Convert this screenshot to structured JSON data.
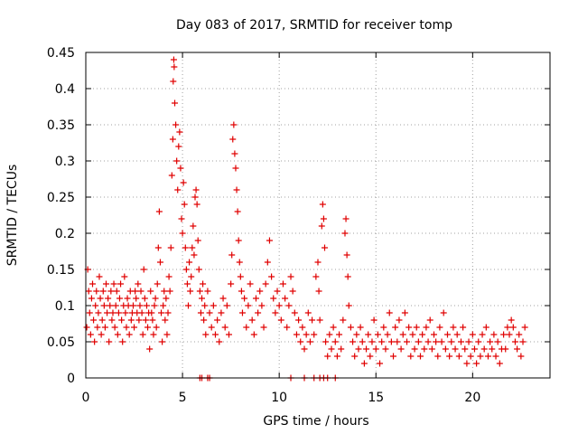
{
  "chart_data": {
    "type": "scatter",
    "title": "Day 083 of 2017, SRMTID for receiver tomp",
    "xlabel": "GPS time / hours",
    "ylabel": "SRMTID / TECUs",
    "xlim": [
      0,
      24
    ],
    "ylim": [
      0,
      0.45
    ],
    "grid": true,
    "marker": "+",
    "x_ticks": [
      0,
      5,
      10,
      15,
      20
    ],
    "x_tick_labels": [
      "0",
      "5",
      "10",
      "15",
      "20"
    ],
    "y_ticks": [
      0,
      0.05,
      0.1,
      0.15,
      0.2,
      0.25,
      0.3,
      0.35,
      0.4,
      0.45
    ],
    "y_tick_labels": [
      "0",
      "0.05",
      "0.1",
      "0.15",
      "0.2",
      "0.25",
      "0.3",
      "0.35",
      "0.4",
      "0.45"
    ],
    "series": [
      {
        "name": "SRMTID",
        "color": "#e00000",
        "points": [
          [
            0.05,
            0.07
          ],
          [
            0.1,
            0.15
          ],
          [
            0.15,
            0.12
          ],
          [
            0.2,
            0.09
          ],
          [
            0.25,
            0.06
          ],
          [
            0.3,
            0.11
          ],
          [
            0.35,
            0.13
          ],
          [
            0.4,
            0.08
          ],
          [
            0.45,
            0.05
          ],
          [
            0.5,
            0.1
          ],
          [
            0.55,
            0.12
          ],
          [
            0.6,
            0.07
          ],
          [
            0.65,
            0.09
          ],
          [
            0.7,
            0.14
          ],
          [
            0.75,
            0.11
          ],
          [
            0.8,
            0.06
          ],
          [
            0.85,
            0.08
          ],
          [
            0.9,
            0.12
          ],
          [
            0.95,
            0.1
          ],
          [
            1.0,
            0.07
          ],
          [
            1.05,
            0.13
          ],
          [
            1.1,
            0.09
          ],
          [
            1.15,
            0.11
          ],
          [
            1.2,
            0.05
          ],
          [
            1.25,
            0.1
          ],
          [
            1.3,
            0.12
          ],
          [
            1.35,
            0.08
          ],
          [
            1.4,
            0.09
          ],
          [
            1.45,
            0.13
          ],
          [
            1.5,
            0.07
          ],
          [
            1.55,
            0.1
          ],
          [
            1.6,
            0.12
          ],
          [
            1.65,
            0.06
          ],
          [
            1.7,
            0.09
          ],
          [
            1.75,
            0.11
          ],
          [
            1.8,
            0.13
          ],
          [
            1.85,
            0.08
          ],
          [
            1.9,
            0.05
          ],
          [
            1.95,
            0.1
          ],
          [
            2.0,
            0.14
          ],
          [
            2.05,
            0.09
          ],
          [
            2.1,
            0.07
          ],
          [
            2.15,
            0.11
          ],
          [
            2.2,
            0.1
          ],
          [
            2.25,
            0.06
          ],
          [
            2.3,
            0.12
          ],
          [
            2.35,
            0.08
          ],
          [
            2.4,
            0.09
          ],
          [
            2.45,
            0.1
          ],
          [
            2.5,
            0.07
          ],
          [
            2.55,
            0.12
          ],
          [
            2.6,
            0.11
          ],
          [
            2.65,
            0.09
          ],
          [
            2.7,
            0.13
          ],
          [
            2.75,
            0.08
          ],
          [
            2.8,
            0.1
          ],
          [
            2.85,
            0.12
          ],
          [
            2.9,
            0.09
          ],
          [
            2.95,
            0.06
          ],
          [
            3.0,
            0.15
          ],
          [
            3.05,
            0.11
          ],
          [
            3.1,
            0.08
          ],
          [
            3.15,
            0.1
          ],
          [
            3.2,
            0.07
          ],
          [
            3.25,
            0.09
          ],
          [
            3.3,
            0.04
          ],
          [
            3.35,
            0.12
          ],
          [
            3.4,
            0.09
          ],
          [
            3.45,
            0.08
          ],
          [
            3.5,
            0.06
          ],
          [
            3.55,
            0.1
          ],
          [
            3.6,
            0.11
          ],
          [
            3.65,
            0.07
          ],
          [
            3.7,
            0.13
          ],
          [
            3.75,
            0.18
          ],
          [
            3.8,
            0.23
          ],
          [
            3.85,
            0.16
          ],
          [
            3.9,
            0.09
          ],
          [
            3.95,
            0.05
          ],
          [
            4.0,
            0.1
          ],
          [
            4.05,
            0.12
          ],
          [
            4.1,
            0.08
          ],
          [
            4.15,
            0.11
          ],
          [
            4.2,
            0.06
          ],
          [
            4.25,
            0.09
          ],
          [
            4.3,
            0.14
          ],
          [
            4.35,
            0.12
          ],
          [
            4.4,
            0.18
          ],
          [
            4.45,
            0.28
          ],
          [
            4.5,
            0.33
          ],
          [
            4.52,
            0.41
          ],
          [
            4.55,
            0.44
          ],
          [
            4.57,
            0.43
          ],
          [
            4.6,
            0.38
          ],
          [
            4.65,
            0.35
          ],
          [
            4.7,
            0.3
          ],
          [
            4.75,
            0.26
          ],
          [
            4.8,
            0.32
          ],
          [
            4.85,
            0.34
          ],
          [
            4.9,
            0.29
          ],
          [
            4.95,
            0.22
          ],
          [
            5.0,
            0.2
          ],
          [
            5.05,
            0.27
          ],
          [
            5.1,
            0.24
          ],
          [
            5.15,
            0.18
          ],
          [
            5.2,
            0.15
          ],
          [
            5.25,
            0.13
          ],
          [
            5.3,
            0.1
          ],
          [
            5.35,
            0.16
          ],
          [
            5.4,
            0.12
          ],
          [
            5.45,
            0.14
          ],
          [
            5.5,
            0.18
          ],
          [
            5.55,
            0.21
          ],
          [
            5.6,
            0.17
          ],
          [
            5.65,
            0.25
          ],
          [
            5.7,
            0.26
          ],
          [
            5.75,
            0.24
          ],
          [
            5.8,
            0.19
          ],
          [
            5.85,
            0.15
          ],
          [
            5.9,
            0.12
          ],
          [
            5.95,
            0.09
          ],
          [
            6.0,
            0.11
          ],
          [
            6.05,
            0.13
          ],
          [
            6.1,
            0.08
          ],
          [
            6.15,
            0.1
          ],
          [
            6.2,
            0.06
          ],
          [
            6.3,
            0.12
          ],
          [
            6.4,
            0.09
          ],
          [
            6.5,
            0.07
          ],
          [
            6.6,
            0.1
          ],
          [
            6.7,
            0.06
          ],
          [
            6.8,
            0.08
          ],
          [
            6.9,
            0.05
          ],
          [
            7.0,
            0.09
          ],
          [
            7.1,
            0.11
          ],
          [
            7.2,
            0.07
          ],
          [
            7.3,
            0.1
          ],
          [
            7.4,
            0.06
          ],
          [
            7.5,
            0.13
          ],
          [
            7.55,
            0.17
          ],
          [
            7.6,
            0.33
          ],
          [
            7.65,
            0.35
          ],
          [
            7.7,
            0.31
          ],
          [
            7.75,
            0.29
          ],
          [
            7.8,
            0.26
          ],
          [
            7.85,
            0.23
          ],
          [
            7.9,
            0.19
          ],
          [
            7.95,
            0.16
          ],
          [
            8.0,
            0.14
          ],
          [
            8.05,
            0.12
          ],
          [
            8.1,
            0.09
          ],
          [
            8.2,
            0.11
          ],
          [
            8.3,
            0.07
          ],
          [
            8.4,
            0.1
          ],
          [
            8.5,
            0.13
          ],
          [
            8.6,
            0.08
          ],
          [
            8.7,
            0.06
          ],
          [
            8.8,
            0.11
          ],
          [
            8.9,
            0.09
          ],
          [
            9.0,
            0.12
          ],
          [
            9.1,
            0.1
          ],
          [
            9.2,
            0.07
          ],
          [
            9.3,
            0.13
          ],
          [
            9.4,
            0.16
          ],
          [
            9.5,
            0.19
          ],
          [
            9.6,
            0.14
          ],
          [
            9.7,
            0.11
          ],
          [
            9.8,
            0.09
          ],
          [
            9.9,
            0.12
          ],
          [
            10.0,
            0.1
          ],
          [
            10.1,
            0.08
          ],
          [
            10.2,
            0.13
          ],
          [
            10.3,
            0.11
          ],
          [
            10.4,
            0.07
          ],
          [
            10.5,
            0.1
          ],
          [
            10.6,
            0.14
          ],
          [
            10.7,
            0.12
          ],
          [
            10.8,
            0.09
          ],
          [
            10.9,
            0.06
          ],
          [
            11.0,
            0.08
          ],
          [
            11.1,
            0.05
          ],
          [
            11.2,
            0.07
          ],
          [
            11.3,
            0.04
          ],
          [
            11.4,
            0.06
          ],
          [
            11.5,
            0.09
          ],
          [
            11.6,
            0.05
          ],
          [
            11.7,
            0.08
          ],
          [
            11.8,
            0.06
          ],
          [
            11.9,
            0.14
          ],
          [
            12.0,
            0.16
          ],
          [
            12.05,
            0.12
          ],
          [
            12.1,
            0.08
          ],
          [
            12.2,
            0.21
          ],
          [
            12.25,
            0.24
          ],
          [
            12.3,
            0.22
          ],
          [
            12.35,
            0.18
          ],
          [
            12.4,
            0.05
          ],
          [
            12.5,
            0.03
          ],
          [
            12.6,
            0.06
          ],
          [
            12.7,
            0.04
          ],
          [
            12.8,
            0.07
          ],
          [
            12.9,
            0.05
          ],
          [
            13.0,
            0.03
          ],
          [
            13.1,
            0.06
          ],
          [
            13.2,
            0.04
          ],
          [
            13.3,
            0.08
          ],
          [
            13.4,
            0.2
          ],
          [
            13.45,
            0.22
          ],
          [
            13.5,
            0.17
          ],
          [
            13.55,
            0.14
          ],
          [
            13.6,
            0.1
          ],
          [
            13.7,
            0.07
          ],
          [
            13.8,
            0.05
          ],
          [
            13.9,
            0.03
          ],
          [
            14.0,
            0.06
          ],
          [
            14.1,
            0.04
          ],
          [
            14.2,
            0.07
          ],
          [
            14.3,
            0.05
          ],
          [
            14.4,
            0.02
          ],
          [
            14.5,
            0.04
          ],
          [
            14.6,
            0.06
          ],
          [
            14.7,
            0.03
          ],
          [
            14.8,
            0.05
          ],
          [
            14.9,
            0.08
          ],
          [
            15.0,
            0.04
          ],
          [
            15.1,
            0.06
          ],
          [
            15.2,
            0.02
          ],
          [
            15.3,
            0.05
          ],
          [
            15.4,
            0.07
          ],
          [
            15.5,
            0.04
          ],
          [
            15.6,
            0.06
          ],
          [
            15.7,
            0.09
          ],
          [
            15.8,
            0.05
          ],
          [
            15.9,
            0.03
          ],
          [
            16.0,
            0.07
          ],
          [
            16.1,
            0.05
          ],
          [
            16.2,
            0.08
          ],
          [
            16.3,
            0.04
          ],
          [
            16.4,
            0.06
          ],
          [
            16.5,
            0.09
          ],
          [
            16.6,
            0.05
          ],
          [
            16.7,
            0.07
          ],
          [
            16.8,
            0.03
          ],
          [
            16.9,
            0.06
          ],
          [
            17.0,
            0.04
          ],
          [
            17.1,
            0.07
          ],
          [
            17.2,
            0.05
          ],
          [
            17.3,
            0.03
          ],
          [
            17.4,
            0.06
          ],
          [
            17.5,
            0.04
          ],
          [
            17.6,
            0.07
          ],
          [
            17.7,
            0.05
          ],
          [
            17.8,
            0.08
          ],
          [
            17.9,
            0.04
          ],
          [
            18.0,
            0.06
          ],
          [
            18.1,
            0.05
          ],
          [
            18.2,
            0.03
          ],
          [
            18.3,
            0.07
          ],
          [
            18.4,
            0.05
          ],
          [
            18.5,
            0.09
          ],
          [
            18.6,
            0.04
          ],
          [
            18.7,
            0.06
          ],
          [
            18.8,
            0.03
          ],
          [
            18.9,
            0.05
          ],
          [
            19.0,
            0.07
          ],
          [
            19.1,
            0.04
          ],
          [
            19.2,
            0.06
          ],
          [
            19.3,
            0.03
          ],
          [
            19.4,
            0.05
          ],
          [
            19.5,
            0.07
          ],
          [
            19.6,
            0.04
          ],
          [
            19.7,
            0.02
          ],
          [
            19.8,
            0.05
          ],
          [
            19.9,
            0.03
          ],
          [
            20.0,
            0.06
          ],
          [
            20.1,
            0.04
          ],
          [
            20.2,
            0.02
          ],
          [
            20.3,
            0.05
          ],
          [
            20.4,
            0.03
          ],
          [
            20.5,
            0.06
          ],
          [
            20.6,
            0.04
          ],
          [
            20.7,
            0.07
          ],
          [
            20.8,
            0.03
          ],
          [
            20.9,
            0.05
          ],
          [
            21.0,
            0.04
          ],
          [
            21.1,
            0.06
          ],
          [
            21.2,
            0.03
          ],
          [
            21.3,
            0.05
          ],
          [
            21.4,
            0.02
          ],
          [
            21.5,
            0.04
          ],
          [
            21.6,
            0.06
          ],
          [
            21.7,
            0.04
          ],
          [
            21.8,
            0.07
          ],
          [
            21.9,
            0.06
          ],
          [
            22.0,
            0.08
          ],
          [
            22.1,
            0.07
          ],
          [
            22.2,
            0.05
          ],
          [
            22.3,
            0.04
          ],
          [
            22.4,
            0.06
          ],
          [
            22.5,
            0.03
          ],
          [
            22.6,
            0.05
          ],
          [
            22.7,
            0.07
          ],
          [
            5.9,
            0.0
          ],
          [
            6.0,
            0.0
          ],
          [
            6.3,
            0.0
          ],
          [
            6.4,
            0.0
          ],
          [
            10.6,
            0.0
          ],
          [
            11.3,
            0.0
          ],
          [
            11.8,
            0.0
          ],
          [
            12.1,
            0.0
          ],
          [
            12.3,
            0.0
          ],
          [
            12.5,
            0.0
          ],
          [
            12.9,
            0.0
          ]
        ]
      }
    ]
  }
}
